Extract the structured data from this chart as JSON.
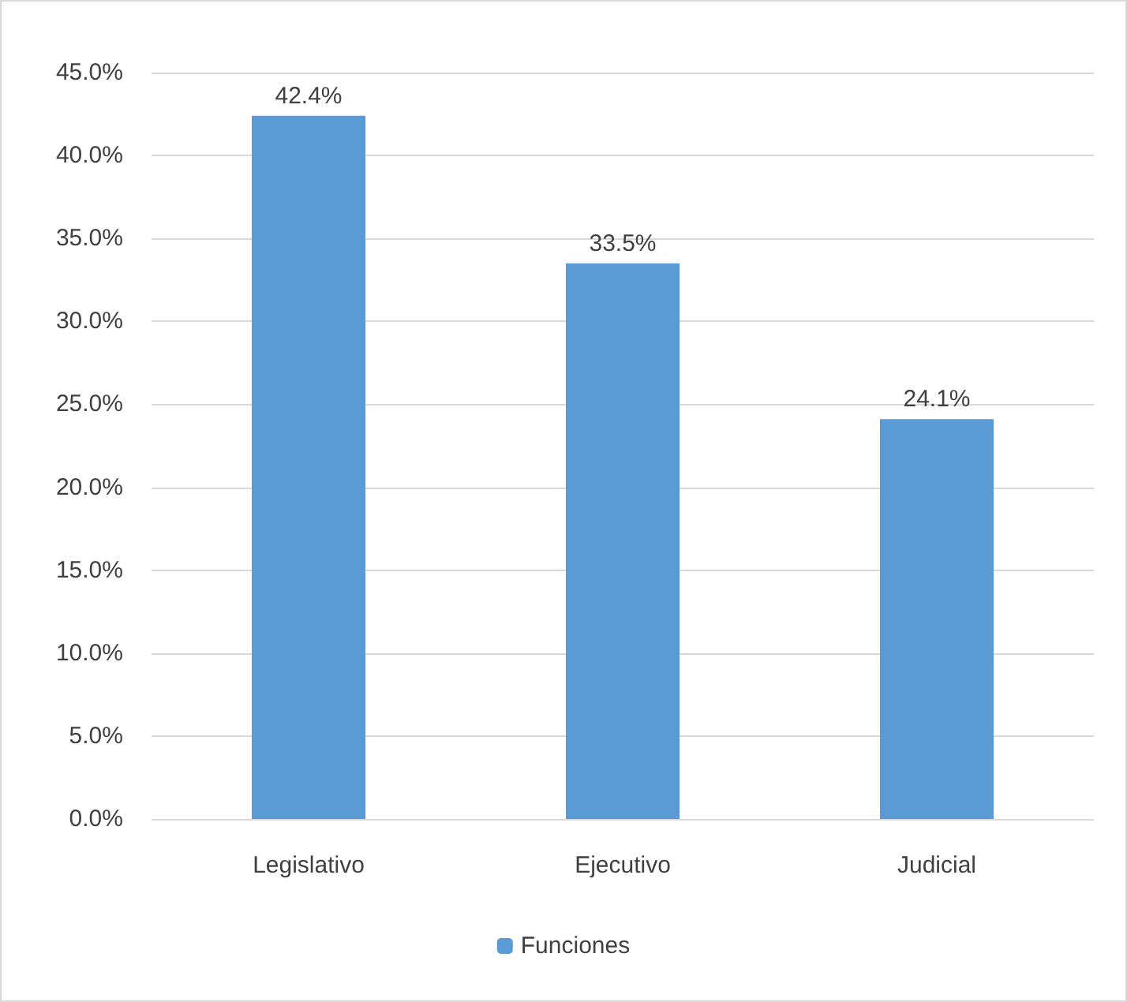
{
  "chart_data": {
    "type": "bar",
    "categories": [
      "Legislativo",
      "Ejecutivo",
      "Judicial"
    ],
    "series": [
      {
        "name": "Funciones",
        "color": "#5b9bd5",
        "values": [
          42.4,
          33.5,
          24.1
        ],
        "value_labels": [
          "42.4%",
          "33.5%",
          "24.1%"
        ]
      }
    ],
    "ylim": [
      0,
      45
    ],
    "yticks": [
      {
        "value": 0,
        "label": "0.0%"
      },
      {
        "value": 5,
        "label": "5.0%"
      },
      {
        "value": 10,
        "label": "10.0%"
      },
      {
        "value": 15,
        "label": "15.0%"
      },
      {
        "value": 20,
        "label": "20.0%"
      },
      {
        "value": 25,
        "label": "25.0%"
      },
      {
        "value": 30,
        "label": "30.0%"
      },
      {
        "value": 35,
        "label": "35.0%"
      },
      {
        "value": 40,
        "label": "40.0%"
      },
      {
        "value": 45,
        "label": "45.0%"
      }
    ],
    "grid": "y",
    "legend": "bottom"
  }
}
